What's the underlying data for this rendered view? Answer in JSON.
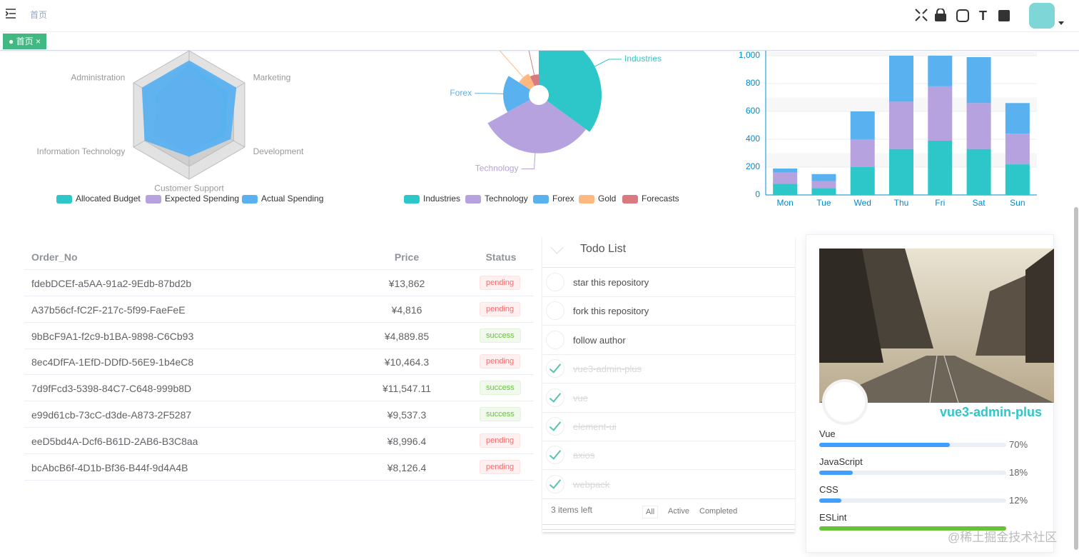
{
  "header": {
    "breadcrumb": "首页",
    "tab": "首页"
  },
  "chart_data": [
    {
      "type": "radar",
      "indicators": [
        null,
        "Marketing",
        "Development",
        "Customer Support",
        "Information Technology",
        "Administration"
      ],
      "rlim": [
        0,
        100
      ],
      "series": [
        {
          "name": "Allocated Budget",
          "color": "#2ec7c9",
          "values": [
            80,
            70,
            65,
            55,
            50,
            60
          ]
        },
        {
          "name": "Expected Spending",
          "color": "#b6a2de",
          "values": [
            75,
            60,
            55,
            60,
            65,
            55
          ]
        },
        {
          "name": "Actual Spending",
          "color": "#5ab1ef",
          "values": [
            85,
            85,
            75,
            65,
            80,
            85
          ]
        }
      ]
    },
    {
      "type": "pie",
      "rose": true,
      "categories": [
        "Industries",
        "Technology",
        "Forex",
        "Gold",
        "Forecasts"
      ],
      "values": [
        35,
        32,
        17,
        9,
        7
      ],
      "colors": [
        "#2ec7c9",
        "#b6a2de",
        "#5ab1ef",
        "#ffb980",
        "#d87a80"
      ]
    },
    {
      "type": "bar",
      "stacked": true,
      "categories": [
        "Mon",
        "Tue",
        "Wed",
        "Thu",
        "Fri",
        "Sat",
        "Sun"
      ],
      "ylim": [
        0,
        1000
      ],
      "yticks": [
        0,
        200,
        400,
        600,
        800,
        {
          "value": 1000,
          "label": "1,000"
        }
      ],
      "grid": true,
      "series": [
        {
          "color": "#2ec7c9",
          "values": [
            80,
            50,
            200,
            330,
            390,
            330,
            220
          ]
        },
        {
          "color": "#b6a2de",
          "values": [
            80,
            50,
            200,
            340,
            390,
            330,
            220
          ]
        },
        {
          "color": "#5ab1ef",
          "values": [
            30,
            50,
            200,
            330,
            220,
            330,
            220
          ]
        }
      ]
    }
  ],
  "table": {
    "columns": [
      "Order_No",
      "Price",
      "Status"
    ],
    "rows": [
      [
        "fdebDCEf-a5AA-91a2-9Edb-87bd2b",
        "¥13,862",
        "pending"
      ],
      [
        "A37b56cf-fC2F-217c-5f99-FaeFeE",
        "¥4,816",
        "pending"
      ],
      [
        "9bBcF9A1-f2c9-b1BA-9898-C6Cb93",
        "¥4,889.85",
        "success"
      ],
      [
        "8ec4DfFA-1EfD-DDfD-56E9-1b4eC8",
        "¥10,464.3",
        "pending"
      ],
      [
        "7d9fFcd3-5398-84C7-C648-999b8D",
        "¥11,547.11",
        "success"
      ],
      [
        "e99d61cb-73cC-d3de-A873-2F5287",
        "¥9,537.3",
        "success"
      ],
      [
        "eeD5bd4A-Dcf6-B61D-2AB6-B3C8aa",
        "¥8,996.4",
        "pending"
      ],
      [
        "bcAbcB6f-4D1b-Bf36-B44f-9d4A4B",
        "¥8,126.4",
        "pending"
      ]
    ]
  },
  "todo": {
    "title": "Todo List",
    "items": [
      {
        "text": "star this repository",
        "done": false
      },
      {
        "text": "fork this repository",
        "done": false
      },
      {
        "text": "follow author",
        "done": false
      },
      {
        "text": "vue3-admin-plus",
        "done": true
      },
      {
        "text": "vue",
        "done": true
      },
      {
        "text": "element-ui",
        "done": true
      },
      {
        "text": "axios",
        "done": true
      },
      {
        "text": "webpack",
        "done": true
      }
    ],
    "left": "3 items left",
    "filters": [
      "All",
      "Active",
      "Completed"
    ]
  },
  "profile": {
    "name": "vue3-admin-plus",
    "skills": {
      "names": [
        "Vue",
        "JavaScript",
        "CSS",
        "ESLint"
      ],
      "values": [
        70,
        18,
        12,
        100
      ],
      "value_labels": [
        "70%",
        "18%",
        "12%",
        null
      ],
      "colors": [
        "#409eff",
        "#409eff",
        "#409eff",
        "#67c23a"
      ]
    }
  },
  "watermark": "@稀土掘金技术社区"
}
